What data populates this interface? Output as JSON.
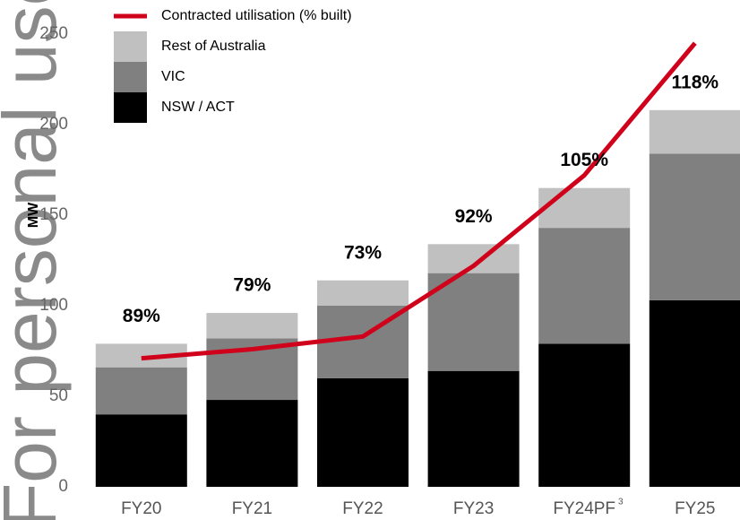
{
  "chart_data": {
    "type": "stacked-bar-line",
    "watermark": "For personal use",
    "y_label": "MW",
    "categories": [
      "FY20",
      "FY21",
      "FY22",
      "FY23",
      "FY24PF",
      "FY25"
    ],
    "category_notes": [
      null,
      null,
      null,
      null,
      "3",
      null
    ],
    "ylim": [
      0,
      250
    ],
    "yticks": [
      0,
      50,
      100,
      150,
      200,
      250
    ],
    "series": [
      {
        "name": "NSW / ACT",
        "color": "#000000",
        "values": [
          40,
          48,
          60,
          64,
          79,
          103
        ]
      },
      {
        "name": "VIC",
        "color": "#808080",
        "values": [
          26,
          34,
          40,
          54,
          64,
          81
        ]
      },
      {
        "name": "Rest of Australia",
        "color": "#c0c0c0",
        "values": [
          13,
          14,
          14,
          16,
          22,
          24
        ]
      }
    ],
    "line": {
      "name": "Contracted utilisation (% built)",
      "color": "#d0021b",
      "values": [
        71,
        76,
        83,
        122,
        172,
        245
      ],
      "labels": [
        "89%",
        "79%",
        "73%",
        "92%",
        "105%",
        "118%"
      ]
    }
  }
}
